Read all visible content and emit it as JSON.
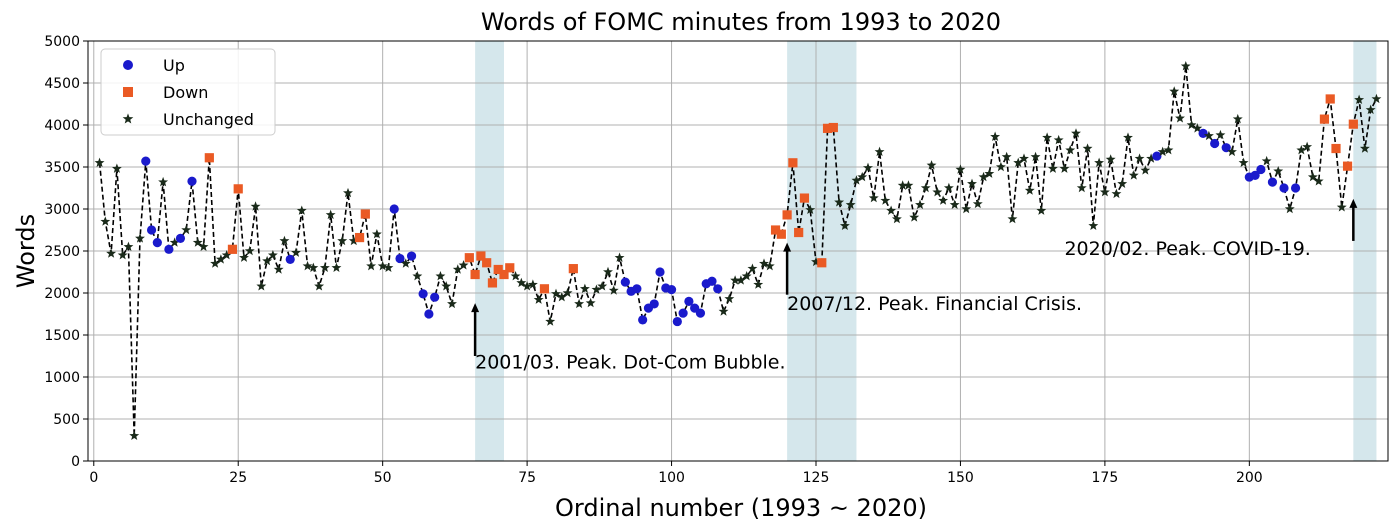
{
  "chart_data": {
    "type": "line",
    "title": "Words of FOMC minutes from 1993 to 2020",
    "xlabel": "Ordinal number (1993 ~ 2020)",
    "ylabel": "Words",
    "xlim": [
      -1,
      224
    ],
    "ylim": [
      0,
      5000
    ],
    "xticks": [
      0,
      25,
      50,
      75,
      100,
      125,
      150,
      175,
      200
    ],
    "yticks": [
      0,
      500,
      1000,
      1500,
      2000,
      2500,
      3000,
      3500,
      4000,
      4500,
      5000
    ],
    "grid": true,
    "legend_position": "top-left",
    "colors": {
      "up": "#1a1acc",
      "down": "#ea5a24",
      "unchanged": "#1a2a1a",
      "line": "#000000",
      "shade": "#d5e7ec"
    },
    "legend": [
      {
        "key": "up",
        "label": "Up"
      },
      {
        "key": "down",
        "label": "Down"
      },
      {
        "key": "unchanged",
        "label": "Unchanged"
      }
    ],
    "shaded_regions": [
      {
        "x0": 66,
        "x1": 71
      },
      {
        "x0": 120,
        "x1": 132
      },
      {
        "x0": 218,
        "x1": 222
      }
    ],
    "annotations": [
      {
        "text": "2001/03. Peak. Dot-Com Bubble.",
        "x": 66,
        "y_from": 1250,
        "y_to": 1880,
        "text_x": 66,
        "text_y": 1100
      },
      {
        "text": "2007/12. Peak. Financial Crisis.",
        "x": 120,
        "y_from": 1980,
        "y_to": 2600,
        "text_x": 120,
        "text_y": 1800
      },
      {
        "text": "2020/02. Peak. COVID-19.",
        "x": 218,
        "y_from": 2620,
        "y_to": 3120,
        "text_x": 168,
        "text_y": 2450
      }
    ],
    "series": [
      {
        "name": "Words",
        "points": [
          [
            1,
            3550,
            "n"
          ],
          [
            2,
            2850,
            "n"
          ],
          [
            3,
            2470,
            "n"
          ],
          [
            4,
            3480,
            "n"
          ],
          [
            5,
            2450,
            "n"
          ],
          [
            6,
            2550,
            "n"
          ],
          [
            7,
            300,
            "n"
          ],
          [
            8,
            2650,
            "n"
          ],
          [
            9,
            3570,
            "u"
          ],
          [
            10,
            2750,
            "u"
          ],
          [
            11,
            2600,
            "u"
          ],
          [
            12,
            3320,
            "n"
          ],
          [
            13,
            2520,
            "u"
          ],
          [
            14,
            2600,
            "n"
          ],
          [
            15,
            2650,
            "u"
          ],
          [
            16,
            2750,
            "n"
          ],
          [
            17,
            3330,
            "u"
          ],
          [
            18,
            2600,
            "n"
          ],
          [
            19,
            2550,
            "n"
          ],
          [
            20,
            3610,
            "d"
          ],
          [
            21,
            2350,
            "n"
          ],
          [
            22,
            2400,
            "n"
          ],
          [
            23,
            2450,
            "n"
          ],
          [
            24,
            2520,
            "d"
          ],
          [
            25,
            3240,
            "d"
          ],
          [
            26,
            2420,
            "n"
          ],
          [
            27,
            2500,
            "n"
          ],
          [
            28,
            3030,
            "n"
          ],
          [
            29,
            2080,
            "n"
          ],
          [
            30,
            2380,
            "n"
          ],
          [
            31,
            2450,
            "n"
          ],
          [
            32,
            2280,
            "n"
          ],
          [
            33,
            2620,
            "n"
          ],
          [
            34,
            2400,
            "u"
          ],
          [
            35,
            2480,
            "n"
          ],
          [
            36,
            2980,
            "n"
          ],
          [
            37,
            2320,
            "n"
          ],
          [
            38,
            2300,
            "n"
          ],
          [
            39,
            2080,
            "n"
          ],
          [
            40,
            2300,
            "n"
          ],
          [
            41,
            2930,
            "n"
          ],
          [
            42,
            2300,
            "n"
          ],
          [
            43,
            2620,
            "n"
          ],
          [
            44,
            3190,
            "n"
          ],
          [
            45,
            2620,
            "n"
          ],
          [
            46,
            2660,
            "d"
          ],
          [
            47,
            2940,
            "d"
          ],
          [
            48,
            2320,
            "n"
          ],
          [
            49,
            2700,
            "n"
          ],
          [
            50,
            2320,
            "n"
          ],
          [
            51,
            2300,
            "n"
          ],
          [
            52,
            3000,
            "u"
          ],
          [
            53,
            2410,
            "u"
          ],
          [
            54,
            2350,
            "n"
          ],
          [
            55,
            2440,
            "u"
          ],
          [
            56,
            2200,
            "n"
          ],
          [
            57,
            1990,
            "u"
          ],
          [
            58,
            1750,
            "u"
          ],
          [
            59,
            1950,
            "u"
          ],
          [
            60,
            2200,
            "n"
          ],
          [
            61,
            2080,
            "n"
          ],
          [
            62,
            1870,
            "n"
          ],
          [
            63,
            2280,
            "n"
          ],
          [
            64,
            2330,
            "n"
          ],
          [
            65,
            2420,
            "d"
          ],
          [
            66,
            2220,
            "d"
          ],
          [
            67,
            2440,
            "d"
          ],
          [
            68,
            2360,
            "d"
          ],
          [
            69,
            2120,
            "d"
          ],
          [
            70,
            2280,
            "d"
          ],
          [
            71,
            2220,
            "d"
          ],
          [
            72,
            2300,
            "d"
          ],
          [
            73,
            2200,
            "n"
          ],
          [
            74,
            2120,
            "n"
          ],
          [
            75,
            2080,
            "n"
          ],
          [
            76,
            2100,
            "n"
          ],
          [
            77,
            1920,
            "n"
          ],
          [
            78,
            2050,
            "d"
          ],
          [
            79,
            1660,
            "n"
          ],
          [
            80,
            1990,
            "n"
          ],
          [
            81,
            1950,
            "n"
          ],
          [
            82,
            2000,
            "n"
          ],
          [
            83,
            2290,
            "d"
          ],
          [
            84,
            1870,
            "n"
          ],
          [
            85,
            2050,
            "n"
          ],
          [
            86,
            1880,
            "n"
          ],
          [
            87,
            2040,
            "n"
          ],
          [
            88,
            2080,
            "n"
          ],
          [
            89,
            2250,
            "n"
          ],
          [
            90,
            2030,
            "n"
          ],
          [
            91,
            2420,
            "n"
          ],
          [
            92,
            2130,
            "u"
          ],
          [
            93,
            2020,
            "u"
          ],
          [
            94,
            2050,
            "u"
          ],
          [
            95,
            1680,
            "u"
          ],
          [
            96,
            1820,
            "u"
          ],
          [
            97,
            1870,
            "u"
          ],
          [
            98,
            2250,
            "u"
          ],
          [
            99,
            2060,
            "u"
          ],
          [
            100,
            2040,
            "u"
          ],
          [
            101,
            1660,
            "u"
          ],
          [
            102,
            1760,
            "u"
          ],
          [
            103,
            1900,
            "u"
          ],
          [
            104,
            1820,
            "u"
          ],
          [
            105,
            1760,
            "u"
          ],
          [
            106,
            2110,
            "u"
          ],
          [
            107,
            2140,
            "u"
          ],
          [
            108,
            2050,
            "u"
          ],
          [
            109,
            1780,
            "n"
          ],
          [
            110,
            1930,
            "n"
          ],
          [
            111,
            2150,
            "n"
          ],
          [
            112,
            2150,
            "n"
          ],
          [
            113,
            2200,
            "n"
          ],
          [
            114,
            2290,
            "n"
          ],
          [
            115,
            2100,
            "n"
          ],
          [
            116,
            2350,
            "n"
          ],
          [
            117,
            2320,
            "n"
          ],
          [
            118,
            2750,
            "d"
          ],
          [
            119,
            2700,
            "d"
          ],
          [
            120,
            2930,
            "d"
          ],
          [
            121,
            3550,
            "d"
          ],
          [
            122,
            2720,
            "d"
          ],
          [
            123,
            3130,
            "d"
          ],
          [
            124,
            2990,
            "n"
          ],
          [
            125,
            2370,
            "n"
          ],
          [
            126,
            2360,
            "d"
          ],
          [
            127,
            3960,
            "d"
          ],
          [
            128,
            3970,
            "d"
          ],
          [
            129,
            3080,
            "n"
          ],
          [
            130,
            2800,
            "n"
          ],
          [
            131,
            3050,
            "n"
          ],
          [
            132,
            3340,
            "n"
          ],
          [
            133,
            3380,
            "n"
          ],
          [
            134,
            3490,
            "n"
          ],
          [
            135,
            3130,
            "n"
          ],
          [
            136,
            3680,
            "n"
          ],
          [
            137,
            3100,
            "n"
          ],
          [
            138,
            2980,
            "n"
          ],
          [
            139,
            2880,
            "n"
          ],
          [
            140,
            3280,
            "n"
          ],
          [
            141,
            3280,
            "n"
          ],
          [
            142,
            2900,
            "n"
          ],
          [
            143,
            3050,
            "n"
          ],
          [
            144,
            3250,
            "n"
          ],
          [
            145,
            3520,
            "n"
          ],
          [
            146,
            3200,
            "n"
          ],
          [
            147,
            3100,
            "n"
          ],
          [
            148,
            3250,
            "n"
          ],
          [
            149,
            3050,
            "n"
          ],
          [
            150,
            3470,
            "n"
          ],
          [
            151,
            3000,
            "n"
          ],
          [
            152,
            3300,
            "n"
          ],
          [
            153,
            3060,
            "n"
          ],
          [
            154,
            3380,
            "n"
          ],
          [
            155,
            3420,
            "n"
          ],
          [
            156,
            3860,
            "n"
          ],
          [
            157,
            3500,
            "n"
          ],
          [
            158,
            3620,
            "n"
          ],
          [
            159,
            2880,
            "n"
          ],
          [
            160,
            3550,
            "n"
          ],
          [
            161,
            3600,
            "n"
          ],
          [
            162,
            3220,
            "n"
          ],
          [
            163,
            3620,
            "n"
          ],
          [
            164,
            2980,
            "n"
          ],
          [
            165,
            3850,
            "n"
          ],
          [
            166,
            3480,
            "n"
          ],
          [
            167,
            3820,
            "n"
          ],
          [
            168,
            3480,
            "n"
          ],
          [
            169,
            3700,
            "n"
          ],
          [
            170,
            3900,
            "n"
          ],
          [
            171,
            3250,
            "n"
          ],
          [
            172,
            3720,
            "n"
          ],
          [
            173,
            2800,
            "n"
          ],
          [
            174,
            3550,
            "n"
          ],
          [
            175,
            3200,
            "n"
          ],
          [
            176,
            3590,
            "n"
          ],
          [
            177,
            3180,
            "n"
          ],
          [
            178,
            3300,
            "n"
          ],
          [
            179,
            3850,
            "n"
          ],
          [
            180,
            3400,
            "n"
          ],
          [
            181,
            3600,
            "n"
          ],
          [
            182,
            3460,
            "n"
          ],
          [
            183,
            3600,
            "n"
          ],
          [
            184,
            3630,
            "u"
          ],
          [
            185,
            3680,
            "n"
          ],
          [
            186,
            3700,
            "n"
          ],
          [
            187,
            4400,
            "n"
          ],
          [
            188,
            4080,
            "n"
          ],
          [
            189,
            4700,
            "n"
          ],
          [
            190,
            4000,
            "n"
          ],
          [
            191,
            3960,
            "n"
          ],
          [
            192,
            3900,
            "u"
          ],
          [
            193,
            3870,
            "n"
          ],
          [
            194,
            3780,
            "u"
          ],
          [
            195,
            3880,
            "n"
          ],
          [
            196,
            3730,
            "u"
          ],
          [
            197,
            3680,
            "n"
          ],
          [
            198,
            4070,
            "n"
          ],
          [
            199,
            3550,
            "n"
          ],
          [
            200,
            3380,
            "u"
          ],
          [
            201,
            3400,
            "u"
          ],
          [
            202,
            3470,
            "u"
          ],
          [
            203,
            3570,
            "n"
          ],
          [
            204,
            3320,
            "u"
          ],
          [
            205,
            3450,
            "n"
          ],
          [
            206,
            3250,
            "u"
          ],
          [
            207,
            3000,
            "n"
          ],
          [
            208,
            3250,
            "u"
          ],
          [
            209,
            3700,
            "n"
          ],
          [
            210,
            3740,
            "n"
          ],
          [
            211,
            3380,
            "n"
          ],
          [
            212,
            3330,
            "n"
          ],
          [
            213,
            4070,
            "d"
          ],
          [
            214,
            4310,
            "d"
          ],
          [
            215,
            3720,
            "d"
          ],
          [
            216,
            3020,
            "n"
          ],
          [
            217,
            3510,
            "d"
          ],
          [
            218,
            4010,
            "d"
          ],
          [
            219,
            4300,
            "n"
          ],
          [
            220,
            3720,
            "n"
          ],
          [
            221,
            4180,
            "n"
          ],
          [
            222,
            4310,
            "n"
          ]
        ]
      }
    ]
  }
}
